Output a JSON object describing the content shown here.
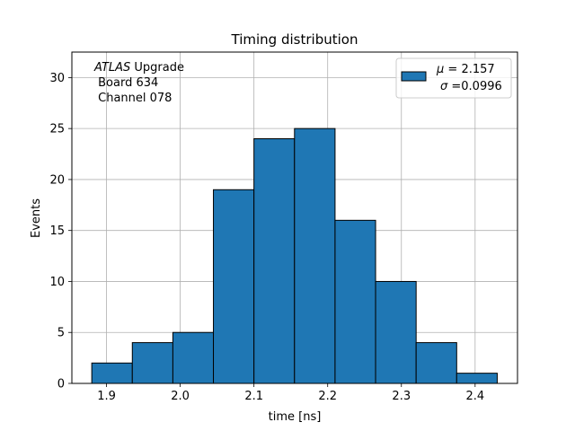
{
  "chart_data": {
    "type": "bar",
    "title": "Timing distribution",
    "xlabel": "time [ns]",
    "ylabel": "Events",
    "bin_edges": [
      1.88,
      1.935,
      1.99,
      2.045,
      2.1,
      2.155,
      2.21,
      2.265,
      2.32,
      2.375,
      2.43
    ],
    "values": [
      2,
      4,
      5,
      19,
      24,
      25,
      16,
      10,
      4,
      1
    ],
    "xlim": [
      1.853,
      2.4575
    ],
    "ylim": [
      0,
      32.5
    ],
    "xticks": [
      1.9,
      2.0,
      2.1,
      2.2,
      2.3,
      2.4
    ],
    "xtick_labels": [
      "1.9",
      "2.0",
      "2.1",
      "2.2",
      "2.3",
      "2.4"
    ],
    "yticks": [
      0,
      5,
      10,
      15,
      20,
      25,
      30
    ],
    "ytick_labels": [
      "0",
      "5",
      "10",
      "15",
      "20",
      "25",
      "30"
    ],
    "grid": true,
    "bar_color": "#1f77b4",
    "edge_color": "#000000",
    "annotation": {
      "line1_italic": "ATLAS",
      "line1_rest": " Upgrade",
      "line2": " Board 634",
      "line3": " Channel 078"
    },
    "legend": {
      "position": "top-right",
      "line1_symbol": "μ",
      "line1_text": " = 2.157",
      "line2_symbol": "σ",
      "line2_text": " =0.0996"
    }
  }
}
